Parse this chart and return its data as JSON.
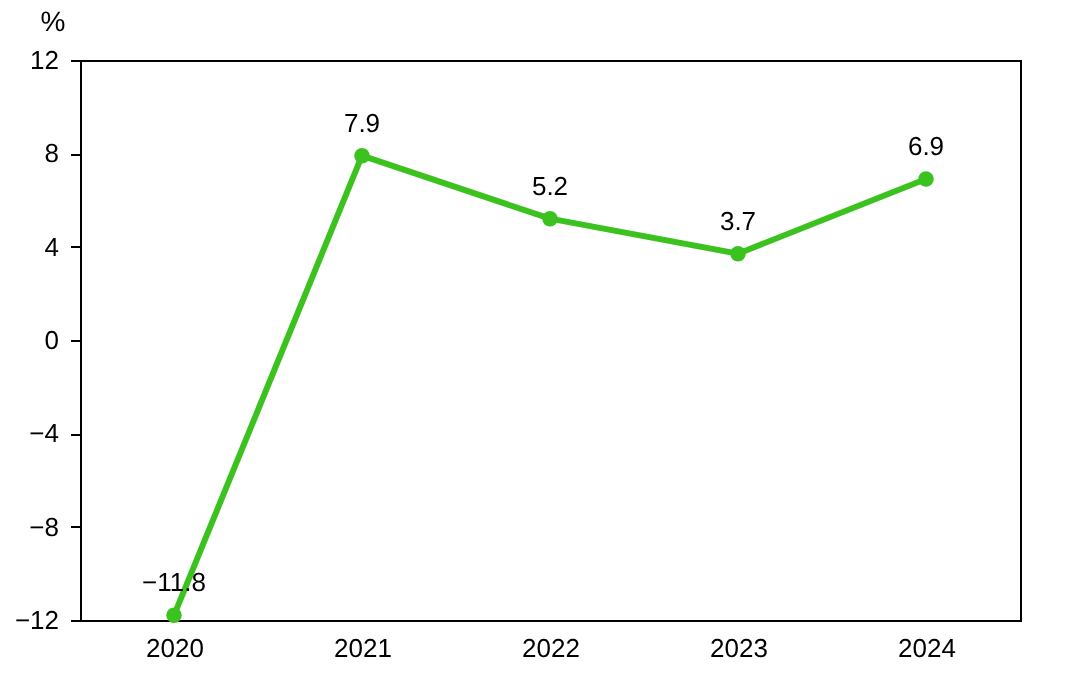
{
  "chart_data": {
    "type": "line",
    "ylabel": "%",
    "categories": [
      "2020",
      "2021",
      "2022",
      "2023",
      "2024"
    ],
    "series": [
      {
        "color": "#3cc21e",
        "values": [
          -11.8,
          7.9,
          5.2,
          3.7,
          6.9
        ]
      }
    ],
    "ylim": [
      -12,
      12
    ],
    "yticks": [
      -12,
      -8,
      -4,
      0,
      4,
      8,
      12
    ],
    "grid": false,
    "marker": "circle",
    "line_style": "solid",
    "data_labels": true
  }
}
